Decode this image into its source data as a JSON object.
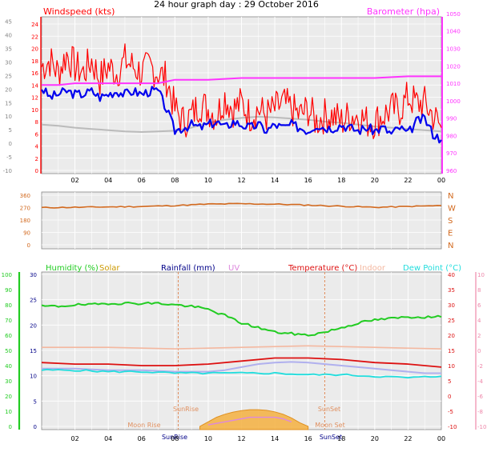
{
  "title": "24 hour graph day : 29 October 2016",
  "colors": {
    "wind_gust": "#ff0000",
    "wind_avg": "#0000ee",
    "barometer": "#ff33ff",
    "gray_series": "#bbbbbb",
    "wind_dir": "#d2691e",
    "humidity": "#22cc22",
    "solar": "#f4b040",
    "solar_line": "#dd88dd",
    "temperature": "#dd1111",
    "indoor": "#f4b8a0",
    "dewpoint": "#22dddd",
    "uv": "#b0b0ee",
    "rainfall": "#000088",
    "panel_bg": "#ebebeb",
    "grid": "#ffffff"
  },
  "chart_data": [
    {
      "type": "line",
      "panel": "wind",
      "left_label": "Windspeed (kts)",
      "right_label": "Barometer (hpa)",
      "x_ticks": [
        "02",
        "04",
        "06",
        "08",
        "10",
        "12",
        "14",
        "16",
        "18",
        "20",
        "22",
        "00"
      ],
      "y_left_outer_ticks": [
        "-10",
        "-5",
        "0",
        "5",
        "10",
        "15",
        "20",
        "25",
        "30",
        "35",
        "40",
        "45"
      ],
      "y_left_inner_ticks": [
        "0",
        "2",
        "4",
        "6",
        "8",
        "10",
        "12",
        "14",
        "16",
        "18",
        "20",
        "22",
        "24"
      ],
      "y_right_ticks": [
        "960",
        "970",
        "980",
        "990",
        "1000",
        "1010",
        "1020",
        "1030",
        "1040",
        "1050"
      ],
      "ylim_kts": [
        0,
        25
      ],
      "ylim_hpa": [
        960,
        1050
      ],
      "series": [
        {
          "name": "gust",
          "x_hours": [
            0,
            0.5,
            1,
            1.5,
            2,
            2.5,
            3,
            3.5,
            4,
            4.5,
            5,
            5.5,
            6,
            6.5,
            7,
            7.5,
            8,
            8.5,
            9,
            9.5,
            10,
            10.5,
            11,
            11.5,
            12,
            12.5,
            13,
            13.5,
            14,
            14.5,
            15,
            15.5,
            16,
            16.5,
            17,
            17.5,
            18,
            18.5,
            19,
            19.5,
            20,
            20.5,
            21,
            21.5,
            22,
            22.5,
            23,
            23.5,
            24
          ],
          "values": [
            17,
            18,
            16,
            19,
            17,
            16,
            18,
            15,
            17,
            16,
            18,
            17,
            16,
            17,
            16,
            15,
            10,
            8,
            9,
            11,
            10,
            9,
            12,
            10,
            11,
            9,
            10,
            9,
            10,
            11,
            10,
            9,
            10,
            8,
            9,
            9,
            8,
            9,
            9,
            8,
            8,
            9,
            10,
            10,
            12,
            11,
            11,
            9,
            7
          ]
        },
        {
          "name": "average",
          "x_hours": [
            0,
            0.5,
            1,
            1.5,
            2,
            2.5,
            3,
            3.5,
            4,
            4.5,
            5,
            5.5,
            6,
            6.5,
            7,
            7.5,
            8,
            8.5,
            9,
            9.5,
            10,
            10.5,
            11,
            11.5,
            12,
            12.5,
            13,
            13.5,
            14,
            14.5,
            15,
            15.5,
            16,
            16.5,
            17,
            17.5,
            18,
            18.5,
            19,
            19.5,
            20,
            20.5,
            21,
            21.5,
            22,
            22.5,
            23,
            23.5,
            24
          ],
          "values": [
            13.5,
            12,
            12.5,
            13,
            12.5,
            12.5,
            13,
            12,
            12.5,
            13,
            12.5,
            13,
            12.5,
            13,
            13,
            10,
            6.5,
            7,
            7.5,
            7,
            7.5,
            8,
            7,
            8,
            7.5,
            7,
            7.5,
            6.5,
            7.5,
            7,
            7.5,
            7,
            6.5,
            7.5,
            7,
            7,
            7.5,
            7,
            6.5,
            7,
            6.5,
            7,
            6,
            7,
            6,
            8,
            8.5,
            6,
            5
          ]
        },
        {
          "name": "barometer",
          "x_hours": [
            0,
            1,
            2,
            3,
            4,
            5,
            6,
            7,
            7.5,
            8,
            10,
            12,
            14,
            16,
            18,
            20,
            22,
            24
          ],
          "values": [
            1009,
            1009,
            1010,
            1010,
            1010,
            1010,
            1010,
            1010,
            1011,
            1012,
            1012,
            1013,
            1013,
            1013,
            1013,
            1013,
            1014,
            1014
          ]
        },
        {
          "name": "gray",
          "x_hours": [
            0,
            1,
            2,
            3,
            4,
            5,
            6,
            7,
            8,
            9,
            10,
            11,
            12,
            13,
            14,
            15,
            16,
            17,
            18,
            19,
            20,
            21,
            22,
            23,
            24
          ],
          "values": [
            7.5,
            7.3,
            7,
            6.8,
            6.6,
            6.4,
            6.3,
            6.4,
            6.5,
            7,
            7.8,
            8.3,
            8.6,
            8.8,
            8.7,
            8.5,
            8.3,
            8,
            7.8,
            7.5,
            7.2,
            7,
            6.8,
            6.6,
            6.4
          ]
        }
      ]
    },
    {
      "type": "line",
      "panel": "wind_direction",
      "y_left_ticks": [
        "0",
        "90",
        "180",
        "270",
        "360"
      ],
      "y_right_ticks": [
        "N",
        "E",
        "S",
        "W",
        "N"
      ],
      "ylim": [
        0,
        360
      ],
      "series": [
        {
          "name": "direction",
          "x_hours": [
            0,
            2,
            4,
            6,
            8,
            10,
            12,
            14,
            16,
            18,
            20,
            22,
            24
          ],
          "values": [
            270,
            272,
            275,
            278,
            285,
            295,
            298,
            295,
            288,
            280,
            272,
            278,
            285
          ]
        }
      ]
    },
    {
      "type": "line",
      "panel": "environment",
      "legend": [
        "Humidity (%)",
        "Solar",
        "Rainfall (mm)",
        "UV",
        "Temperature (°C)",
        "Indoor",
        "Dew Point (°C)"
      ],
      "y_left_outer_ticks": [
        "0",
        "10",
        "20",
        "30",
        "40",
        "50",
        "60",
        "70",
        "80",
        "90",
        "100"
      ],
      "y_left_inner_ticks": [
        "0",
        "5",
        "10",
        "15",
        "20",
        "25",
        "30"
      ],
      "y_right_ticks": [
        "-10",
        "-5",
        "0",
        "5",
        "10",
        "15",
        "20",
        "25",
        "30",
        "35",
        "40"
      ],
      "y_right_outer_ticks": [
        "-10",
        "-8",
        "-6",
        "-4",
        "-2",
        "0",
        "2",
        "4",
        "6",
        "8",
        "10"
      ],
      "annotations": [
        "SunRise",
        "SunSet",
        "Moon Rise",
        "Moon Set",
        "SunRise",
        "SunSet"
      ],
      "series": [
        {
          "name": "humidity",
          "x_hours": [
            0,
            1,
            2,
            3,
            4,
            5,
            6,
            7,
            8,
            9,
            10,
            11,
            12,
            13,
            14,
            15,
            16,
            17,
            18,
            19,
            20,
            21,
            22,
            23,
            24
          ],
          "values": [
            79,
            79,
            80,
            80,
            81,
            81,
            81,
            81,
            80,
            79,
            77,
            73,
            68,
            65,
            62,
            61,
            60,
            62,
            65,
            68,
            70,
            71,
            72,
            72,
            72
          ]
        },
        {
          "name": "temperature",
          "x_hours": [
            0,
            2,
            4,
            6,
            8,
            10,
            12,
            14,
            16,
            18,
            20,
            22,
            24
          ],
          "values": [
            11,
            10.5,
            10.5,
            10,
            10,
            10.5,
            11.5,
            12.5,
            12.5,
            12,
            11,
            10.5,
            9.5
          ]
        },
        {
          "name": "indoor",
          "x_hours": [
            0,
            4,
            8,
            12,
            16,
            20,
            24
          ],
          "values": [
            16,
            16,
            15.5,
            16,
            16.5,
            16,
            15.5
          ]
        },
        {
          "name": "uv",
          "x_hours": [
            0,
            2,
            4,
            6,
            8,
            9,
            10,
            11,
            12,
            13,
            14,
            15,
            16,
            17,
            18,
            19,
            20,
            21,
            22,
            23,
            24
          ],
          "values": [
            9,
            9,
            8.5,
            8.5,
            8,
            8,
            8,
            8.5,
            9.5,
            10.5,
            11,
            11.2,
            11,
            10.5,
            10,
            9.5,
            9,
            8.5,
            8,
            7.5,
            7.5
          ]
        },
        {
          "name": "dewpoint",
          "x_hours": [
            0,
            2,
            4,
            6,
            8,
            10,
            12,
            14,
            16,
            18,
            20,
            22,
            24
          ],
          "values": [
            8.5,
            8.5,
            8,
            8,
            7.5,
            7.5,
            7.5,
            7.5,
            7,
            7,
            6.5,
            6,
            6.5
          ]
        },
        {
          "name": "solar",
          "x_hours": [
            9.5,
            10,
            10.5,
            11,
            11.5,
            12,
            12.5,
            13,
            13.5,
            14,
            14.5,
            15,
            15.5,
            16
          ],
          "values": [
            0,
            1.5,
            3,
            4,
            4.7,
            5.2,
            5.5,
            5.5,
            5.3,
            4.8,
            4,
            2.8,
            1.2,
            0
          ]
        },
        {
          "name": "solar_line",
          "x_hours": [
            10,
            10.5,
            11,
            11.5,
            12,
            12.5,
            13,
            13.5,
            14,
            14.5,
            15
          ],
          "values": [
            0.5,
            1,
            1.5,
            2,
            2.5,
            3,
            3,
            3,
            3,
            2.5,
            1.5
          ]
        }
      ]
    }
  ]
}
